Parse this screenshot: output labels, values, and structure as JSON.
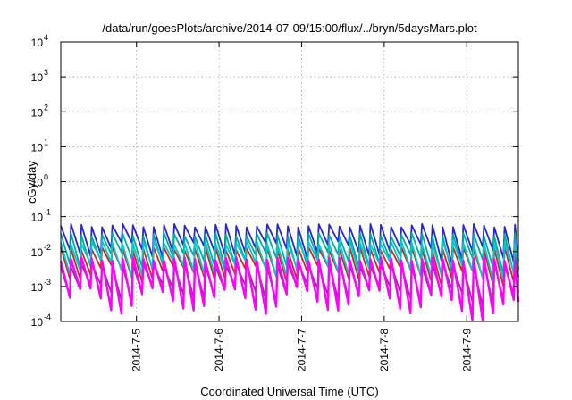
{
  "chart_data": {
    "type": "line",
    "title": "/data/run/goesPlots/archive/2014-07-09/15:00/flux/../bryn/5daysMars.plot",
    "xlabel": "Coordinated Universal Time (UTC)",
    "ylabel": "cGy/day",
    "y_scale": "log",
    "ylim": [
      0.0001,
      10000
    ],
    "xlim": [
      "2014-07-04T02:00",
      "2014-07-09T15:00"
    ],
    "grid": true,
    "y_ticks": [
      {
        "base": "10",
        "exp": "-4",
        "value": 0.0001
      },
      {
        "base": "10",
        "exp": "-3",
        "value": 0.001
      },
      {
        "base": "10",
        "exp": "-2",
        "value": 0.01
      },
      {
        "base": "10",
        "exp": "-1",
        "value": 0.1
      },
      {
        "base": "10",
        "exp": "0",
        "value": 1
      },
      {
        "base": "10",
        "exp": "1",
        "value": 10
      },
      {
        "base": "10",
        "exp": "2",
        "value": 100
      },
      {
        "base": "10",
        "exp": "3",
        "value": 1000
      },
      {
        "base": "10",
        "exp": "4",
        "value": 10000
      }
    ],
    "x_ticks": [
      {
        "label": "2014-7-5",
        "time": "2014-07-05T00:00"
      },
      {
        "label": "2014-7-6",
        "time": "2014-07-06T00:00"
      },
      {
        "label": "2014-7-7",
        "time": "2014-07-07T00:00"
      },
      {
        "label": "2014-7-8",
        "time": "2014-07-08T00:00"
      },
      {
        "label": "2014-7-9",
        "time": "2014-07-09T00:00"
      }
    ],
    "sawtooth_period_hours": 3,
    "series": [
      {
        "color": "#2828c8",
        "peak": 0.055,
        "trough": 0.0085
      },
      {
        "color": "#00a8a8",
        "peak": 0.03,
        "trough": 0.004
      },
      {
        "color": "#c82828",
        "peak": 0.012,
        "trough": 0.0018
      },
      {
        "color": "#00c8c8",
        "peak": 0.018,
        "trough": 0.0025
      },
      {
        "color": "#9030a0",
        "peak": 0.004,
        "trough": 0.0005
      },
      {
        "color": "#ff00ff",
        "peak": 0.006,
        "trough": 0.00025
      }
    ]
  }
}
